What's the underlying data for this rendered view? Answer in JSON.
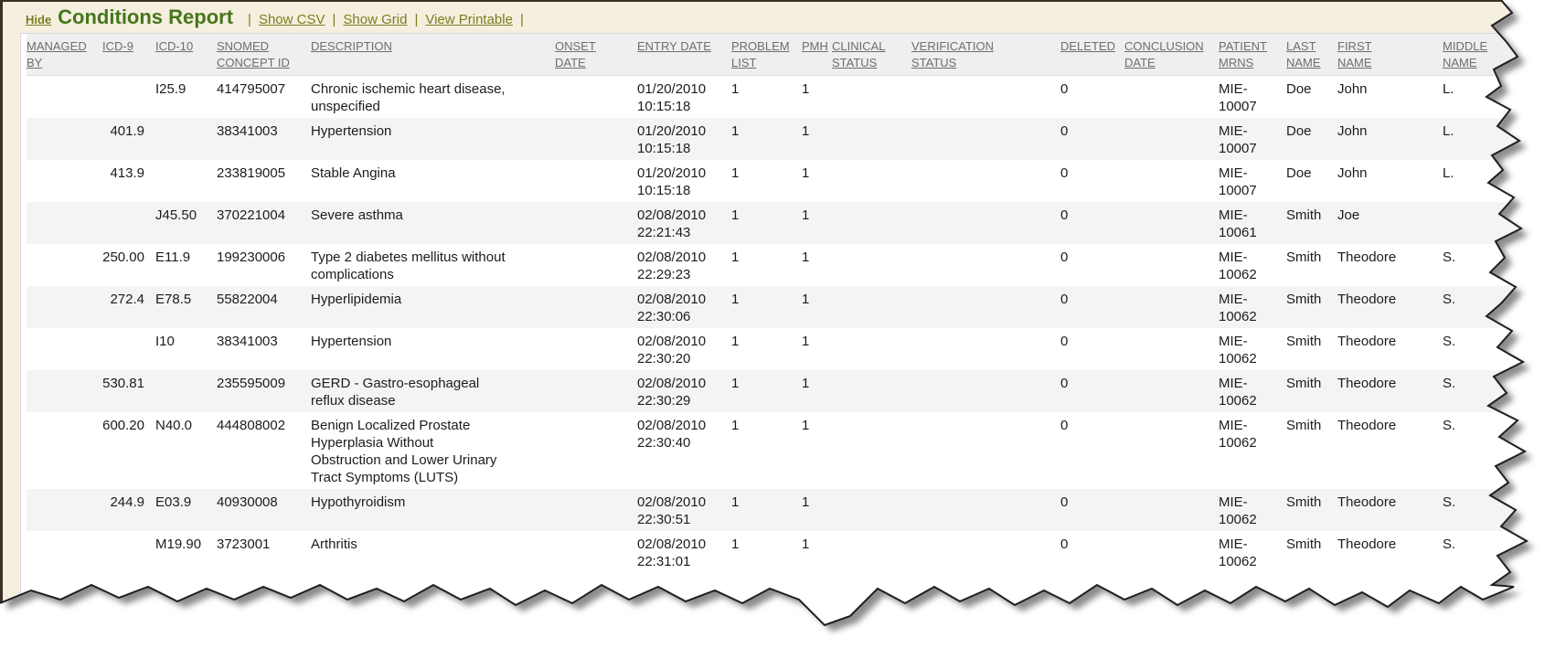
{
  "toolbar": {
    "hide_label": "Hide",
    "title": "Conditions Report",
    "sep": "|",
    "links": [
      "Show CSV",
      "Show Grid",
      "View Printable"
    ]
  },
  "colors": {
    "title_green": "#45761c",
    "link_olive": "#7b7d20",
    "page_cream": "#f5efdf",
    "header_bg": "#efefef",
    "header_text": "#6e6e6e",
    "row_stripe": "#f4f4f4",
    "frame_brown": "#3c2f26",
    "body_text": "#1c1c1c"
  },
  "table": {
    "columns": [
      {
        "key": "managed_by",
        "label": "MANAGED\nBY"
      },
      {
        "key": "icd9",
        "label": "ICD-9"
      },
      {
        "key": "icd10",
        "label": "ICD-10"
      },
      {
        "key": "snomed",
        "label": "SNOMED\nCONCEPT ID"
      },
      {
        "key": "description",
        "label": "DESCRIPTION"
      },
      {
        "key": "onset",
        "label": "ONSET\nDATE"
      },
      {
        "key": "entry",
        "label": "ENTRY DATE"
      },
      {
        "key": "problem_list",
        "label": "PROBLEM\nLIST"
      },
      {
        "key": "pmh",
        "label": "PMH"
      },
      {
        "key": "clinical",
        "label": "CLINICAL\nSTATUS"
      },
      {
        "key": "verification",
        "label": "VERIFICATION\nSTATUS"
      },
      {
        "key": "deleted",
        "label": "DELETED"
      },
      {
        "key": "conclusion",
        "label": "CONCLUSION\nDATE"
      },
      {
        "key": "mrn",
        "label": "PATIENT\nMRNS"
      },
      {
        "key": "last",
        "label": "LAST\nNAME"
      },
      {
        "key": "first",
        "label": "FIRST\nNAME"
      },
      {
        "key": "middle",
        "label": "MIDDLE\nNAME"
      }
    ],
    "rows": [
      {
        "managed_by": "",
        "icd9": "",
        "icd10": "I25.9",
        "snomed": "414795007",
        "description": "Chronic ischemic heart disease, unspecified",
        "onset": "",
        "entry": "01/20/2010 10:15:18",
        "problem_list": "1",
        "pmh": "1",
        "clinical": "",
        "verification": "",
        "deleted": "0",
        "conclusion": "",
        "mrn": "MIE-10007",
        "last": "Doe",
        "first": "John",
        "middle": "L."
      },
      {
        "managed_by": "",
        "icd9": "401.9",
        "icd10": "",
        "snomed": "38341003",
        "description": "Hypertension",
        "onset": "",
        "entry": "01/20/2010 10:15:18",
        "problem_list": "1",
        "pmh": "1",
        "clinical": "",
        "verification": "",
        "deleted": "0",
        "conclusion": "",
        "mrn": "MIE-10007",
        "last": "Doe",
        "first": "John",
        "middle": "L."
      },
      {
        "managed_by": "",
        "icd9": "413.9",
        "icd10": "",
        "snomed": "233819005",
        "description": "Stable Angina",
        "onset": "",
        "entry": "01/20/2010 10:15:18",
        "problem_list": "1",
        "pmh": "1",
        "clinical": "",
        "verification": "",
        "deleted": "0",
        "conclusion": "",
        "mrn": "MIE-10007",
        "last": "Doe",
        "first": "John",
        "middle": "L."
      },
      {
        "managed_by": "",
        "icd9": "",
        "icd10": "J45.50",
        "snomed": "370221004",
        "description": "Severe asthma",
        "onset": "",
        "entry": "02/08/2010 22:21:43",
        "problem_list": "1",
        "pmh": "1",
        "clinical": "",
        "verification": "",
        "deleted": "0",
        "conclusion": "",
        "mrn": "MIE-10061",
        "last": "Smith",
        "first": "Joe",
        "middle": ""
      },
      {
        "managed_by": "",
        "icd9": "250.00",
        "icd10": "E11.9",
        "snomed": "199230006",
        "description": "Type 2 diabetes mellitus without complications",
        "onset": "",
        "entry": "02/08/2010 22:29:23",
        "problem_list": "1",
        "pmh": "1",
        "clinical": "",
        "verification": "",
        "deleted": "0",
        "conclusion": "",
        "mrn": "MIE-10062",
        "last": "Smith",
        "first": "Theodore",
        "middle": "S."
      },
      {
        "managed_by": "",
        "icd9": "272.4",
        "icd10": "E78.5",
        "snomed": "55822004",
        "description": "Hyperlipidemia",
        "onset": "",
        "entry": "02/08/2010 22:30:06",
        "problem_list": "1",
        "pmh": "1",
        "clinical": "",
        "verification": "",
        "deleted": "0",
        "conclusion": "",
        "mrn": "MIE-10062",
        "last": "Smith",
        "first": "Theodore",
        "middle": "S."
      },
      {
        "managed_by": "",
        "icd9": "",
        "icd10": "I10",
        "snomed": "38341003",
        "description": "Hypertension",
        "onset": "",
        "entry": "02/08/2010 22:30:20",
        "problem_list": "1",
        "pmh": "1",
        "clinical": "",
        "verification": "",
        "deleted": "0",
        "conclusion": "",
        "mrn": "MIE-10062",
        "last": "Smith",
        "first": "Theodore",
        "middle": "S."
      },
      {
        "managed_by": "",
        "icd9": "530.81",
        "icd10": "",
        "snomed": "235595009",
        "description": "GERD - Gastro-esophageal reflux disease",
        "onset": "",
        "entry": "02/08/2010 22:30:29",
        "problem_list": "1",
        "pmh": "1",
        "clinical": "",
        "verification": "",
        "deleted": "0",
        "conclusion": "",
        "mrn": "MIE-10062",
        "last": "Smith",
        "first": "Theodore",
        "middle": "S."
      },
      {
        "managed_by": "",
        "icd9": "600.20",
        "icd10": "N40.0",
        "snomed": "444808002",
        "description": "Benign Localized Prostate Hyperplasia Without Obstruction and Lower Urinary Tract Symptoms (LUTS)",
        "onset": "",
        "entry": "02/08/2010 22:30:40",
        "problem_list": "1",
        "pmh": "1",
        "clinical": "",
        "verification": "",
        "deleted": "0",
        "conclusion": "",
        "mrn": "MIE-10062",
        "last": "Smith",
        "first": "Theodore",
        "middle": "S."
      },
      {
        "managed_by": "",
        "icd9": "244.9",
        "icd10": "E03.9",
        "snomed": "40930008",
        "description": "Hypothyroidism",
        "onset": "",
        "entry": "02/08/2010 22:30:51",
        "problem_list": "1",
        "pmh": "1",
        "clinical": "",
        "verification": "",
        "deleted": "0",
        "conclusion": "",
        "mrn": "MIE-10062",
        "last": "Smith",
        "first": "Theodore",
        "middle": "S."
      },
      {
        "managed_by": "",
        "icd9": "",
        "icd10": "M19.90",
        "snomed": "3723001",
        "description": "Arthritis",
        "onset": "",
        "entry": "02/08/2010 22:31:01",
        "problem_list": "1",
        "pmh": "1",
        "clinical": "",
        "verification": "",
        "deleted": "0",
        "conclusion": "",
        "mrn": "MIE-10062",
        "last": "Smith",
        "first": "Theodore",
        "middle": "S."
      }
    ]
  }
}
